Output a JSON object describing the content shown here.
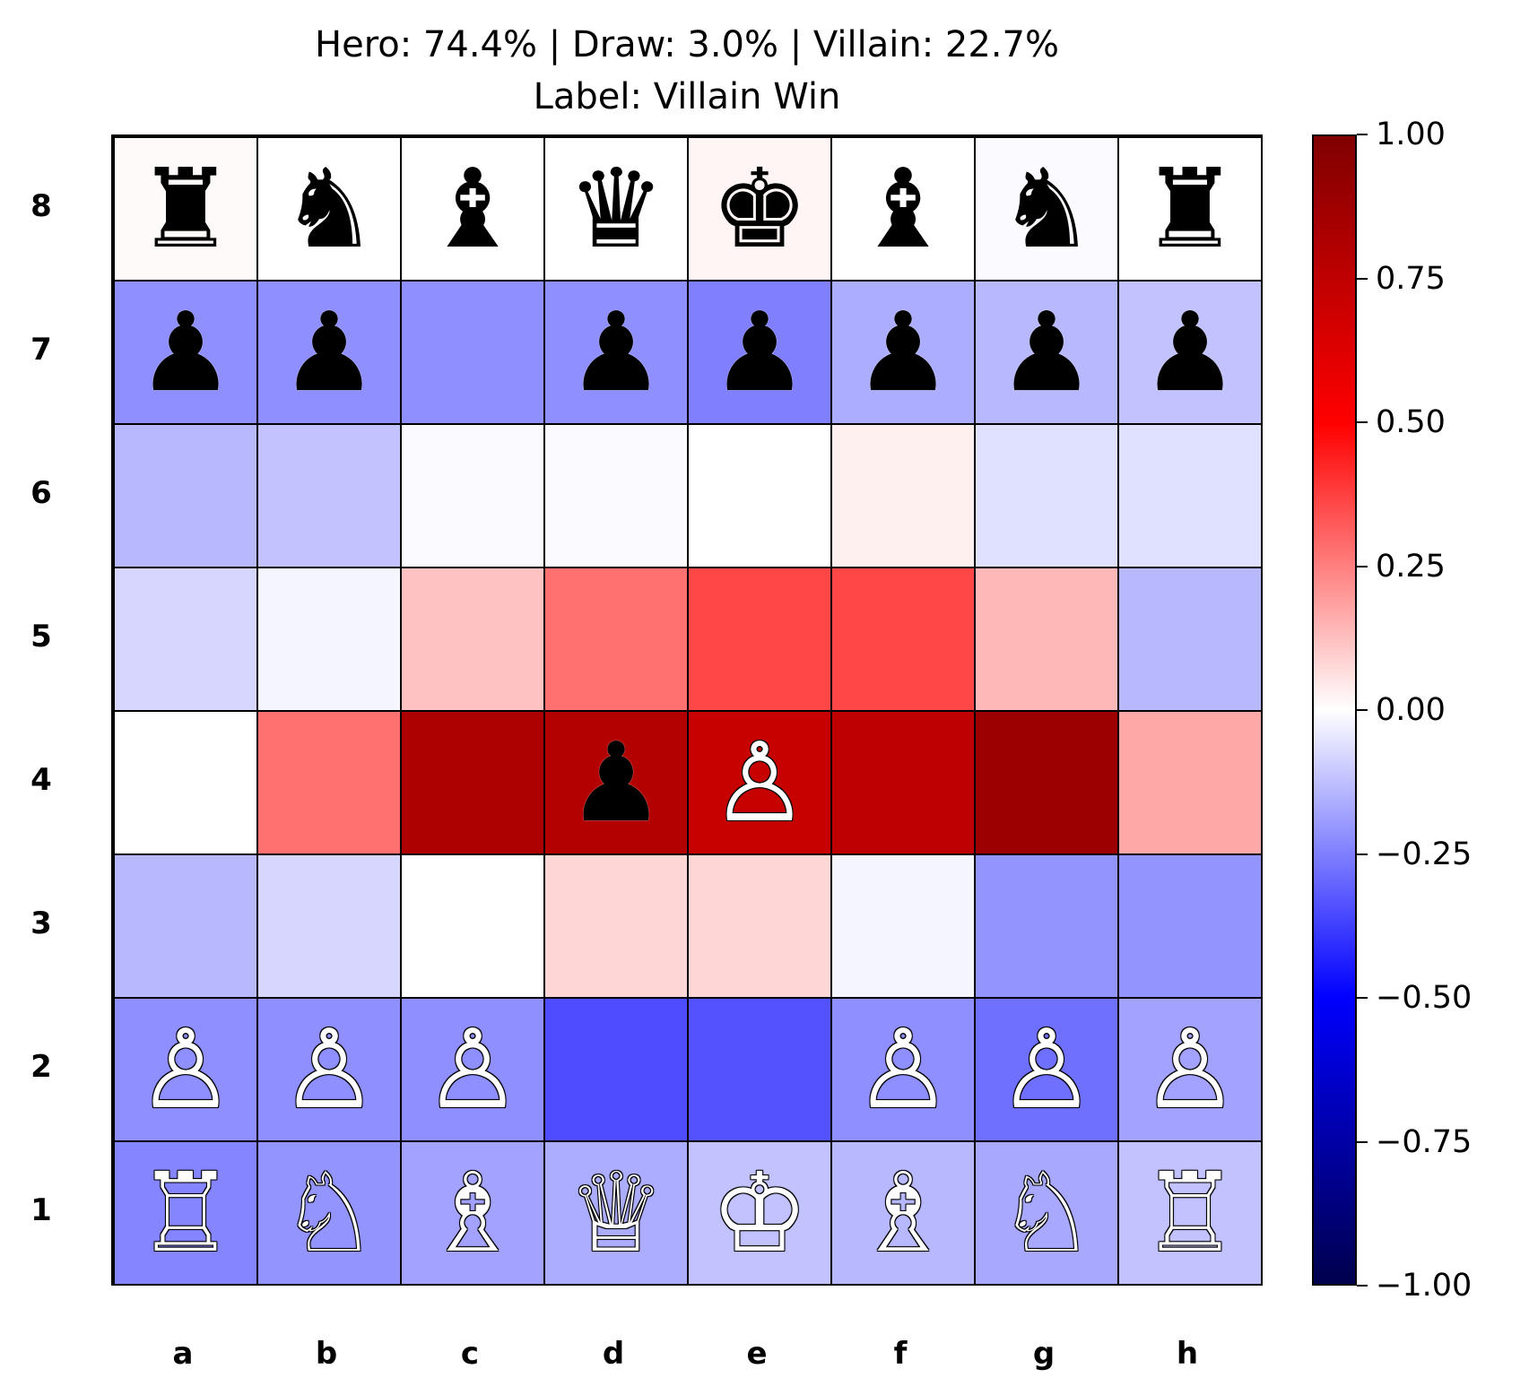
{
  "title": {
    "line1": "Hero: 74.4% | Draw: 3.0% | Villain: 22.7%",
    "line2": "Label: Villain Win"
  },
  "files": [
    "a",
    "b",
    "c",
    "d",
    "e",
    "f",
    "g",
    "h"
  ],
  "ranks": [
    "8",
    "7",
    "6",
    "5",
    "4",
    "3",
    "2",
    "1"
  ],
  "board": [
    [
      "r",
      "n",
      "b",
      "q",
      "k",
      "b",
      "n",
      "r"
    ],
    [
      "p",
      "p",
      "",
      "p",
      "p",
      "p",
      "p",
      "p"
    ],
    [
      "",
      "",
      "",
      "",
      "",
      "",
      "",
      ""
    ],
    [
      "",
      "",
      "",
      "",
      "",
      "",
      "",
      ""
    ],
    [
      "",
      "",
      "",
      "p",
      "P",
      "",
      "",
      ""
    ],
    [
      "",
      "",
      "",
      "",
      "",
      "",
      "",
      ""
    ],
    [
      "P",
      "P",
      "P",
      "",
      "",
      "P",
      "P",
      "P"
    ],
    [
      "R",
      "N",
      "B",
      "Q",
      "K",
      "B",
      "N",
      "R"
    ]
  ],
  "heatmap": [
    [
      0.01,
      0.0,
      0.0,
      0.0,
      0.02,
      0.0,
      -0.01,
      0.0
    ],
    [
      -0.22,
      -0.22,
      -0.22,
      -0.22,
      -0.25,
      -0.16,
      -0.14,
      -0.12
    ],
    [
      -0.14,
      -0.12,
      -0.01,
      -0.01,
      0.0,
      0.03,
      -0.06,
      -0.06
    ],
    [
      -0.08,
      -0.02,
      0.12,
      0.28,
      0.36,
      0.36,
      0.14,
      -0.14
    ],
    [
      0.0,
      0.28,
      0.82,
      0.8,
      0.72,
      0.75,
      0.89,
      0.17
    ],
    [
      -0.14,
      -0.08,
      0.0,
      0.08,
      0.08,
      -0.02,
      -0.21,
      -0.21
    ],
    [
      -0.22,
      -0.22,
      -0.22,
      -0.35,
      -0.34,
      -0.22,
      -0.28,
      -0.18
    ],
    [
      -0.24,
      -0.21,
      -0.18,
      -0.16,
      -0.12,
      -0.14,
      -0.17,
      -0.12
    ]
  ],
  "colorbar": {
    "min": -1.0,
    "max": 1.0,
    "ticks": [
      "1.00",
      "0.75",
      "0.50",
      "0.25",
      "0.00",
      "−0.25",
      "−0.50",
      "−0.75",
      "−1.00"
    ],
    "colormap": "seismic"
  },
  "piece_glyphs": {
    "K": "♔",
    "Q": "♕",
    "R": "♖",
    "B": "♗",
    "N": "♘",
    "P": "♙",
    "k": "♚",
    "q": "♛",
    "r": "♜",
    "b": "♝",
    "n": "♞",
    "p": "♟"
  }
}
